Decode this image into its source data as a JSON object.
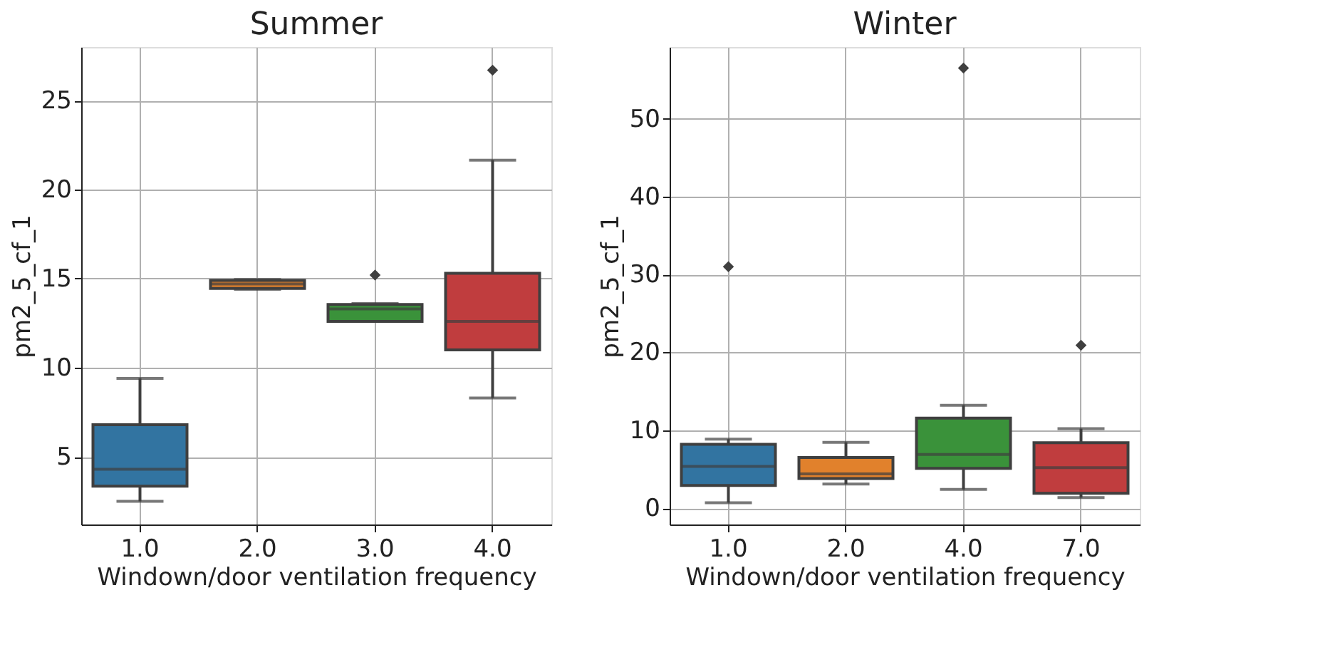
{
  "chart_data": [
    {
      "type": "box",
      "title": "Summer",
      "xlabel": "Windown/door ventilation frequency",
      "ylabel": "pm2_5_cf_1",
      "categories": [
        "1.0",
        "2.0",
        "3.0",
        "4.0"
      ],
      "colors": [
        "#3274a1",
        "#e1812c",
        "#3a923a",
        "#c03d3e"
      ],
      "boxes": [
        {
          "low": 2.5,
          "q1": 3.35,
          "median": 4.3,
          "q3": 6.8,
          "high": 9.4
        },
        {
          "low": 14.4,
          "q1": 14.45,
          "median": 14.7,
          "q3": 14.9,
          "high": 14.95
        },
        {
          "low": 12.6,
          "q1": 12.6,
          "median": 13.3,
          "q3": 13.55,
          "high": 13.6,
          "outliers": [
            15.2
          ]
        },
        {
          "low": 8.3,
          "q1": 11.0,
          "median": 12.6,
          "q3": 15.3,
          "high": 21.65,
          "outliers": [
            26.7
          ]
        }
      ],
      "ylim": [
        1.2,
        28.0
      ],
      "yticks": [
        5,
        10,
        15,
        20,
        25
      ],
      "grid": true,
      "marker": "diamond"
    },
    {
      "type": "box",
      "title": "Winter",
      "xlabel": "Windown/door ventilation frequency",
      "ylabel": "pm2_5_cf_1",
      "categories": [
        "1.0",
        "2.0",
        "4.0",
        "7.0"
      ],
      "colors": [
        "#3274a1",
        "#e1812c",
        "#3a923a",
        "#c03d3e"
      ],
      "boxes": [
        {
          "low": 0.7,
          "q1": 2.9,
          "median": 5.35,
          "q3": 8.2,
          "high": 8.85,
          "outliers": [
            31.0
          ]
        },
        {
          "low": 3.1,
          "q1": 3.8,
          "median": 4.4,
          "q3": 6.5,
          "high": 8.45
        },
        {
          "low": 2.4,
          "q1": 5.1,
          "median": 6.9,
          "q3": 11.55,
          "high": 13.2,
          "outliers": [
            56.5
          ]
        },
        {
          "low": 1.35,
          "q1": 1.9,
          "median": 5.2,
          "q3": 8.4,
          "high": 10.2,
          "outliers": [
            20.9
          ]
        }
      ],
      "ylim": [
        -2.1,
        59.2
      ],
      "yticks": [
        0,
        10,
        20,
        30,
        40,
        50
      ],
      "grid": true,
      "marker": "diamond"
    }
  ]
}
